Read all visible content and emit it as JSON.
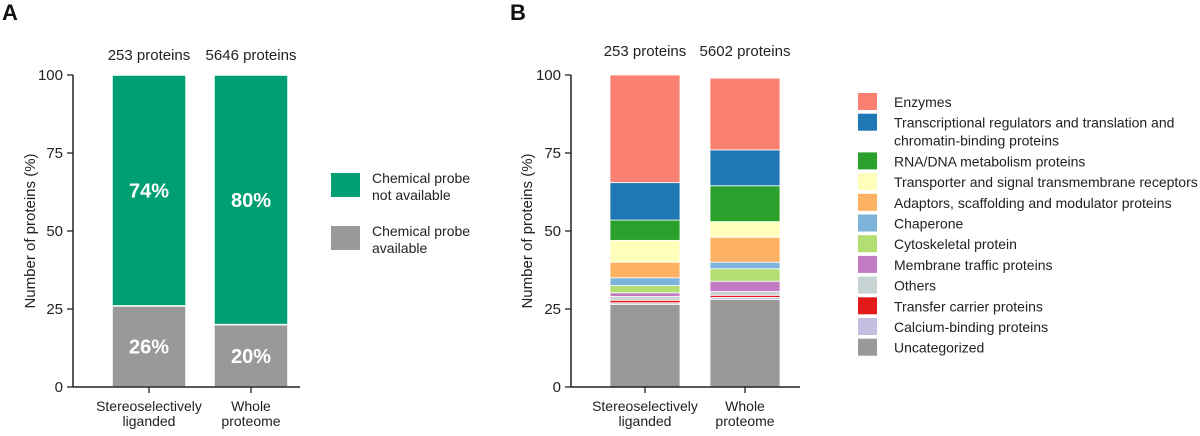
{
  "chart_data": [
    {
      "panel": "A",
      "type": "bar",
      "stacked": true,
      "ylabel": "Number of proteins (%)",
      "ylim": [
        0,
        100
      ],
      "yticks": [
        0,
        25,
        50,
        75,
        100
      ],
      "categories": [
        {
          "line1": "Stereoselectively",
          "line2": "liganded"
        },
        {
          "line1": "Whole",
          "line2": "proteome"
        }
      ],
      "counts": [
        "253 proteins",
        "5646 proteins"
      ],
      "series": [
        {
          "name": "Chemical probe available",
          "label_lines": [
            "Chemical probe",
            "available"
          ],
          "color": "#999999",
          "values": [
            26,
            20
          ],
          "labels": [
            "26%",
            "20%"
          ]
        },
        {
          "name": "Chemical probe not available",
          "label_lines": [
            "Chemical probe",
            "not available"
          ],
          "color": "#009E73",
          "values": [
            74,
            80
          ],
          "labels": [
            "74%",
            "80%"
          ]
        }
      ],
      "legend_order": [
        1,
        0
      ],
      "legend_position": "right"
    },
    {
      "panel": "B",
      "type": "bar",
      "stacked": true,
      "ylabel": "Number of proteins (%)",
      "ylim": [
        0,
        100
      ],
      "yticks": [
        0,
        25,
        50,
        75,
        100
      ],
      "categories": [
        {
          "line1": "Stereoselectively",
          "line2": "liganded"
        },
        {
          "line1": "Whole",
          "line2": "proteome"
        }
      ],
      "counts": [
        "253 proteins",
        "5602 proteins"
      ],
      "series": [
        {
          "name": "Uncategorized",
          "color": "#999999",
          "values": [
            26.5,
            28.0
          ]
        },
        {
          "name": "Calcium-binding proteins",
          "color": "#C2BFE0",
          "values": [
            0.5,
            0.7
          ]
        },
        {
          "name": "Transfer carrier proteins",
          "color": "#E31A1C",
          "values": [
            0.8,
            0.7
          ]
        },
        {
          "name": "Others",
          "color": "#C8D4D4",
          "values": [
            1.2,
            1.2
          ]
        },
        {
          "name": "Membrane traffic proteins",
          "color": "#C37BC4",
          "values": [
            1.2,
            3.3
          ]
        },
        {
          "name": "Cytoskeletal protein",
          "color": "#B3DF72",
          "values": [
            2.3,
            4.0
          ]
        },
        {
          "name": "Chaperone",
          "color": "#7EB3DC",
          "values": [
            2.5,
            2.1
          ]
        },
        {
          "name": "Adaptors, scaffolding and modulator proteins",
          "color": "#FDB163",
          "values": [
            5.0,
            8.0
          ]
        },
        {
          "name": "Transporter and signal transmembrane receptors",
          "color": "#FFFFBB",
          "values": [
            7.0,
            5.0
          ]
        },
        {
          "name": "RNA/DNA metabolism proteins",
          "color": "#2CA02C",
          "values": [
            6.5,
            11.5
          ]
        },
        {
          "name": "Transcriptional regulators and translation and chromatin-binding proteins",
          "label_lines": [
            "Transcriptional regulators and translation and",
            "chromatin-binding proteins"
          ],
          "color": "#1F78B4",
          "values": [
            12.0,
            11.5
          ]
        },
        {
          "name": "Enzymes",
          "color": "#FA8072",
          "values": [
            34.5,
            23.0
          ]
        }
      ],
      "legend_order": [
        11,
        10,
        9,
        8,
        7,
        6,
        5,
        4,
        3,
        2,
        1,
        0
      ],
      "legend_position": "right"
    }
  ]
}
